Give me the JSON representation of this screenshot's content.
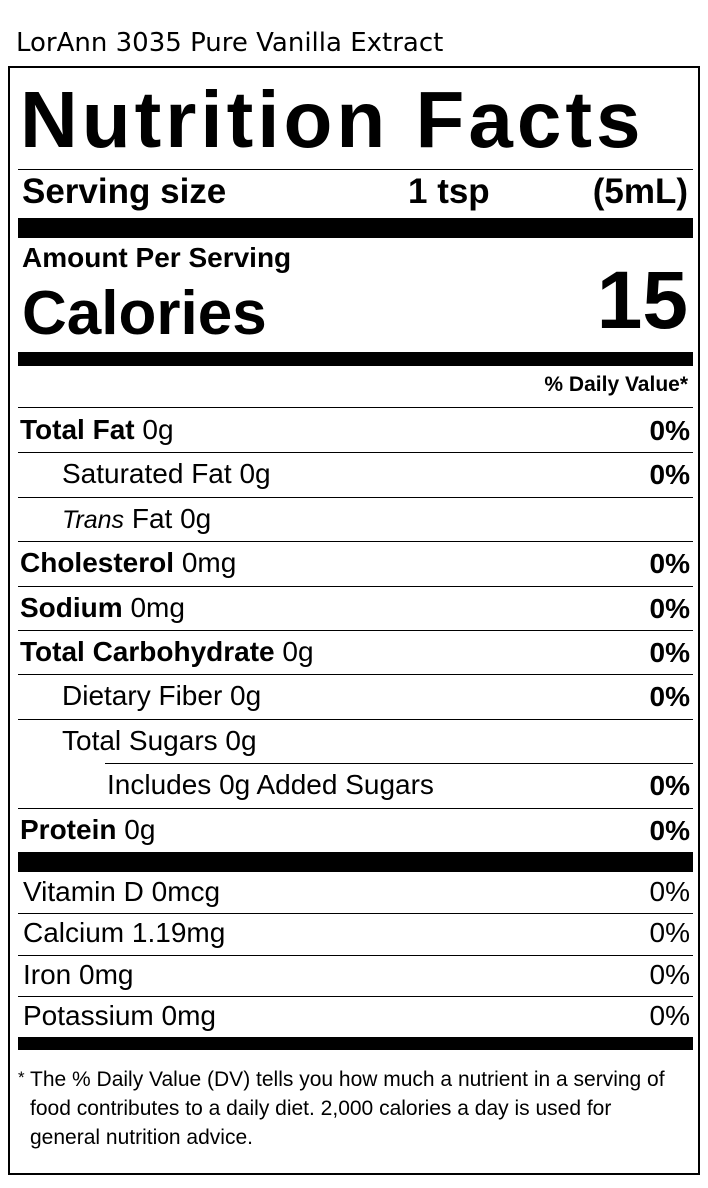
{
  "header": {
    "product": "LorAnn 3035 Pure Vanilla Extract"
  },
  "label": {
    "title": "Nutrition Facts",
    "serving_size": {
      "label": "Serving size",
      "amount": "1 tsp",
      "metric": "(5mL)"
    },
    "amount_per_serving": "Amount Per Serving",
    "calories": {
      "label": "Calories",
      "value": 15
    },
    "dv_header": "% Daily Value*",
    "nutrients": [
      {
        "name": "Total Fat",
        "amount": "0g",
        "dv": "0%",
        "bold": true,
        "indent": 0
      },
      {
        "name": "Saturated Fat",
        "amount": "0g",
        "dv": "0%",
        "bold": false,
        "indent": 1
      },
      {
        "name_italic": "Trans",
        "name": "Fat",
        "amount": "0g",
        "bold": false,
        "indent": 1
      },
      {
        "name": "Cholesterol",
        "amount": "0mg",
        "dv": "0%",
        "bold": true,
        "indent": 0
      },
      {
        "name": "Sodium",
        "amount": "0mg",
        "dv": "0%",
        "bold": true,
        "indent": 0
      },
      {
        "name": "Total Carbohydrate",
        "amount": "0g",
        "dv": "0%",
        "bold": true,
        "indent": 0
      },
      {
        "name": "Dietary Fiber",
        "amount": "0g",
        "dv": "0%",
        "bold": false,
        "indent": 1
      },
      {
        "name": "Total Sugars",
        "amount": "0g",
        "bold": false,
        "indent": 1
      },
      {
        "name": "Includes 0g Added Sugars",
        "dv": "0%",
        "bold": false,
        "indent": 2
      },
      {
        "name": "Protein",
        "amount": "0g",
        "dv": "0%",
        "bold": true,
        "indent": 0
      }
    ],
    "vitamins": [
      {
        "name": "Vitamin D",
        "amount": "0mcg",
        "dv": "0%"
      },
      {
        "name": "Calcium",
        "amount": "1.19mg",
        "dv": "0%"
      },
      {
        "name": "Iron",
        "amount": "0mg",
        "dv": "0%"
      },
      {
        "name": "Potassium",
        "amount": "0mg",
        "dv": "0%"
      }
    ],
    "footnote": {
      "marker": "*",
      "text": "The % Daily Value (DV) tells you how much a nutrient in a serving of food contributes to a daily diet. 2,000 calories a day is used for general nutrition advice."
    }
  }
}
